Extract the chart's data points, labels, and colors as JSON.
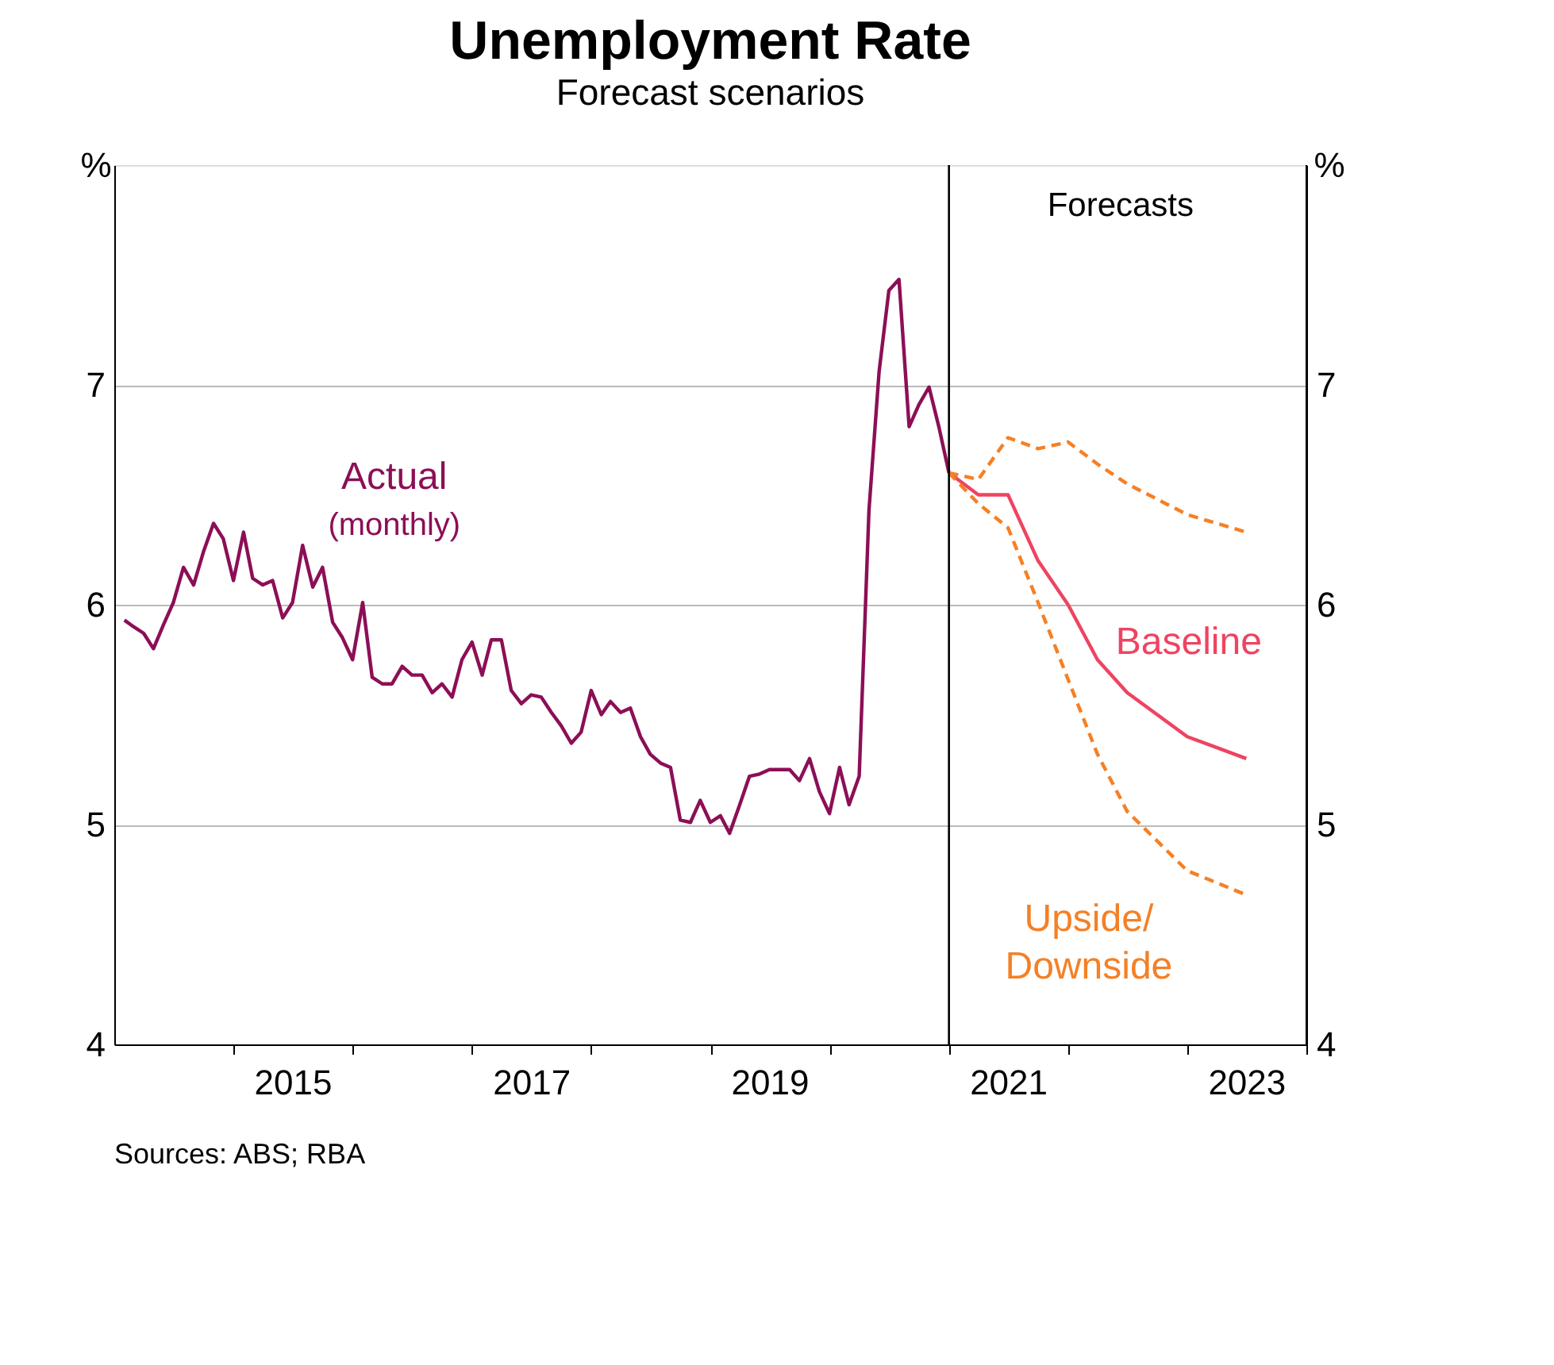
{
  "chart_data": {
    "type": "line",
    "title": "Unemployment Rate",
    "subtitle": "Forecast scenarios",
    "ylabel": "%",
    "y2label": "%",
    "xlim": [
      "2014-01",
      "2024-01"
    ],
    "xticks": [
      {
        "value": "2015-01",
        "label": null
      },
      {
        "value": "2015-07",
        "label": "2015"
      },
      {
        "value": "2016-01",
        "label": null
      },
      {
        "value": "2017-01",
        "label": null
      },
      {
        "value": "2017-07",
        "label": "2017"
      },
      {
        "value": "2018-01",
        "label": null
      },
      {
        "value": "2019-01",
        "label": null
      },
      {
        "value": "2019-07",
        "label": "2019"
      },
      {
        "value": "2020-01",
        "label": null
      },
      {
        "value": "2021-01",
        "label": null
      },
      {
        "value": "2021-07",
        "label": "2021"
      },
      {
        "value": "2022-01",
        "label": null
      },
      {
        "value": "2023-01",
        "label": null
      },
      {
        "value": "2023-07",
        "label": "2023"
      },
      {
        "value": "2024-01",
        "label": null
      }
    ],
    "ylim": [
      4,
      8
    ],
    "yticks": [
      4,
      5,
      6,
      7
    ],
    "y2lim": [
      4,
      8
    ],
    "y2ticks": [
      4,
      5,
      6,
      7
    ],
    "grid": "y",
    "legend": false,
    "series": [
      {
        "name": "Actual",
        "color": "#8c0f56",
        "line_style": "solid",
        "x": [
          "2014-02",
          "2014-03",
          "2014-04",
          "2014-05",
          "2014-06",
          "2014-07",
          "2014-08",
          "2014-09",
          "2014-10",
          "2014-11",
          "2014-12",
          "2015-01",
          "2015-02",
          "2015-03",
          "2015-04",
          "2015-05",
          "2015-06",
          "2015-07",
          "2015-08",
          "2015-09",
          "2015-10",
          "2015-11",
          "2015-12",
          "2016-01",
          "2016-02",
          "2016-03",
          "2016-04",
          "2016-05",
          "2016-06",
          "2016-07",
          "2016-08",
          "2016-09",
          "2016-10",
          "2016-11",
          "2016-12",
          "2017-01",
          "2017-02",
          "2017-03",
          "2017-04",
          "2017-05",
          "2017-06",
          "2017-07",
          "2017-08",
          "2017-09",
          "2017-10",
          "2017-11",
          "2017-12",
          "2018-01",
          "2018-02",
          "2018-03",
          "2018-04",
          "2018-05",
          "2018-06",
          "2018-07",
          "2018-08",
          "2018-09",
          "2018-10",
          "2018-11",
          "2018-12",
          "2019-01",
          "2019-02",
          "2019-03",
          "2019-04",
          "2019-05",
          "2019-06",
          "2019-07",
          "2019-08",
          "2019-09",
          "2019-10",
          "2019-11",
          "2019-12",
          "2020-01",
          "2020-02",
          "2020-03",
          "2020-04",
          "2020-05",
          "2020-06",
          "2020-07",
          "2020-08",
          "2020-09",
          "2020-10",
          "2020-11",
          "2020-12",
          "2021-01"
        ],
        "values": [
          5.93,
          5.9,
          5.87,
          5.8,
          5.91,
          6.01,
          6.17,
          6.09,
          6.24,
          6.37,
          6.3,
          6.11,
          6.33,
          6.12,
          6.09,
          6.11,
          5.94,
          6.01,
          6.27,
          6.08,
          6.17,
          5.92,
          5.85,
          5.75,
          6.01,
          5.67,
          5.64,
          5.64,
          5.72,
          5.68,
          5.68,
          5.6,
          5.64,
          5.58,
          5.75,
          5.83,
          5.68,
          5.84,
          5.84,
          5.61,
          5.55,
          5.59,
          5.58,
          5.51,
          5.45,
          5.37,
          5.42,
          5.61,
          5.5,
          5.56,
          5.51,
          5.53,
          5.4,
          5.32,
          5.28,
          5.26,
          5.02,
          5.01,
          5.11,
          5.01,
          5.04,
          4.96,
          5.09,
          5.22,
          5.23,
          5.25,
          5.25,
          5.25,
          5.2,
          5.3,
          5.15,
          5.05,
          5.26,
          5.09,
          5.22,
          6.43,
          7.06,
          7.43,
          7.48,
          6.81,
          6.91,
          6.99,
          6.81,
          6.6
        ]
      },
      {
        "name": "Baseline",
        "color": "#ee4461",
        "line_style": "solid",
        "x": [
          "2021-01",
          "2021-04",
          "2021-07",
          "2021-10",
          "2022-01",
          "2022-04",
          "2022-07",
          "2023-01",
          "2023-07"
        ],
        "values": [
          6.6,
          6.5,
          6.5,
          6.2,
          6.0,
          5.75,
          5.6,
          5.4,
          5.3
        ]
      },
      {
        "name": "Upside/\nDownside",
        "color": "#f58025",
        "line_style": "dashed",
        "x": [
          "2021-01",
          "2021-04",
          "2021-07",
          "2021-10",
          "2022-01",
          "2022-04",
          "2022-07",
          "2023-01",
          "2023-07"
        ],
        "values": [
          6.6,
          6.57,
          6.76,
          6.71,
          6.74,
          6.64,
          6.55,
          6.41,
          6.33
        ]
      },
      {
        "color": "#f58025",
        "line_style": "dashed",
        "x": [
          "2021-01",
          "2021-04",
          "2021-07",
          "2021-10",
          "2022-01",
          "2022-04",
          "2022-07",
          "2023-01",
          "2023-07"
        ],
        "values": [
          6.6,
          6.46,
          6.35,
          6.01,
          5.66,
          5.32,
          5.06,
          4.79,
          4.68
        ]
      }
    ],
    "ref_lines": [
      {
        "axis": "x",
        "value": "2021-01",
        "label": "Forecasts",
        "color": "#000000",
        "line_style": "solid"
      }
    ],
    "annotations": [
      "(monthly)",
      "Sources: ABS; RBA"
    ]
  }
}
